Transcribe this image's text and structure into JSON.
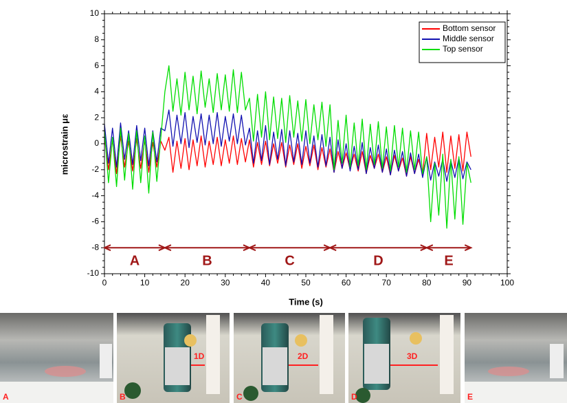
{
  "chart_data": {
    "type": "line",
    "xlabel": "Time (s)",
    "ylabel": "microstrain με",
    "xlim": [
      0,
      100
    ],
    "xticks": [
      0,
      10,
      20,
      30,
      40,
      50,
      60,
      70,
      80,
      90,
      100
    ],
    "ylim": [
      -10,
      10
    ],
    "yticks": [
      -10,
      -8,
      -6,
      -4,
      -2,
      0,
      2,
      4,
      6,
      8,
      10
    ],
    "legend": "upper right",
    "x": [
      0,
      1,
      2,
      3,
      4,
      5,
      6,
      7,
      8,
      9,
      10,
      11,
      12,
      13,
      14,
      15,
      16,
      17,
      18,
      19,
      20,
      21,
      22,
      23,
      24,
      25,
      26,
      27,
      28,
      29,
      30,
      31,
      32,
      33,
      34,
      35,
      36,
      37,
      38,
      39,
      40,
      41,
      42,
      43,
      44,
      45,
      46,
      47,
      48,
      49,
      50,
      51,
      52,
      53,
      54,
      55,
      56,
      57,
      58,
      59,
      60,
      61,
      62,
      63,
      64,
      65,
      66,
      67,
      68,
      69,
      70,
      71,
      72,
      73,
      74,
      75,
      76,
      77,
      78,
      79,
      80,
      81,
      82,
      83,
      84,
      85,
      86,
      87,
      88,
      89,
      90,
      91
    ],
    "series": [
      {
        "name": "Bottom sensor",
        "color": "#ff0000",
        "values": [
          0.5,
          -2.0,
          0.3,
          -2.3,
          0.6,
          -1.8,
          0.2,
          -2.1,
          0.4,
          -1.9,
          0.3,
          -2.2,
          0.1,
          -1.8,
          0.2,
          -0.5,
          0.5,
          -2.2,
          0.2,
          -1.9,
          0.4,
          -2.0,
          0.3,
          -1.7,
          0.6,
          -1.8,
          0.2,
          -1.6,
          0.5,
          -1.7,
          0.3,
          -1.5,
          0.6,
          -1.6,
          0.4,
          -1.4,
          0.3,
          -1.8,
          0.1,
          -1.6,
          0.2,
          -1.7,
          0.0,
          -1.5,
          0.1,
          -1.8,
          -0.1,
          -1.6,
          0.0,
          -1.9,
          -0.2,
          -1.7,
          -0.1,
          -2.0,
          -0.3,
          -1.8,
          -0.4,
          -2.2,
          -0.6,
          -1.9,
          -0.7,
          -2.0,
          -0.8,
          -2.1,
          -0.6,
          -2.3,
          -0.9,
          -1.9,
          -0.8,
          -2.2,
          -1.0,
          -2.4,
          -0.9,
          -2.1,
          -1.1,
          -2.5,
          -1.0,
          -2.3,
          -1.2,
          -2.4,
          0.8,
          -2.0,
          0.5,
          -1.8,
          0.9,
          -2.2,
          0.6,
          -1.9,
          0.7,
          -2.1,
          0.9,
          -1.0
        ]
      },
      {
        "name": "Middle sensor",
        "color": "#1010b0",
        "values": [
          1.5,
          -1.5,
          1.2,
          -1.8,
          1.6,
          -1.2,
          1.0,
          -1.6,
          1.4,
          -1.3,
          1.2,
          -1.7,
          1.0,
          -1.4,
          1.2,
          1.0,
          2.6,
          -0.2,
          2.2,
          0.0,
          2.4,
          -0.3,
          2.1,
          0.1,
          2.3,
          -0.1,
          2.2,
          0.0,
          2.4,
          -0.2,
          2.1,
          0.2,
          2.3,
          0.0,
          2.2,
          -0.1,
          1.2,
          -1.5,
          1.0,
          -1.3,
          1.4,
          -1.6,
          0.9,
          -1.2,
          1.1,
          -1.7,
          1.0,
          -1.4,
          0.8,
          -1.6,
          1.0,
          -1.5,
          0.6,
          -1.8,
          0.7,
          -1.7,
          0.5,
          -2.2,
          0.3,
          -1.9,
          0.0,
          -2.1,
          -0.2,
          -2.0,
          0.1,
          -2.3,
          -0.3,
          -1.9,
          -0.1,
          -2.2,
          -0.4,
          -2.4,
          -0.5,
          -2.1,
          -0.6,
          -2.5,
          -0.7,
          -2.3,
          -0.8,
          -2.6,
          -1.0,
          -2.8,
          -1.4,
          -2.5,
          -1.2,
          -2.9,
          -1.3,
          -2.6,
          -1.1,
          -2.7,
          -1.4,
          -2.0
        ]
      },
      {
        "name": "Top sensor",
        "color": "#00dd00",
        "values": [
          1.0,
          -3.0,
          0.5,
          -3.3,
          1.2,
          -2.8,
          0.8,
          -3.5,
          1.0,
          -3.0,
          0.6,
          -3.8,
          0.9,
          -2.9,
          0.5,
          4.0,
          6.0,
          2.5,
          5.0,
          2.2,
          5.5,
          2.6,
          5.2,
          2.3,
          5.6,
          2.8,
          5.0,
          2.4,
          5.4,
          2.6,
          5.3,
          2.5,
          5.7,
          2.4,
          5.5,
          2.6,
          3.5,
          0.2,
          3.8,
          0.5,
          4.0,
          0.3,
          3.6,
          0.4,
          3.5,
          0.1,
          3.7,
          0.5,
          3.3,
          0.2,
          3.4,
          0.0,
          3.0,
          0.3,
          3.2,
          -0.2,
          3.0,
          -2.0,
          1.8,
          -1.5,
          2.2,
          -1.8,
          1.6,
          -1.7,
          1.9,
          -2.0,
          1.5,
          -1.6,
          1.7,
          -1.9,
          1.3,
          -2.1,
          1.4,
          -1.8,
          1.2,
          -2.2,
          1.0,
          -2.0,
          0.9,
          -2.3,
          -1.0,
          -6.0,
          -1.5,
          -5.5,
          -0.8,
          -6.5,
          -1.2,
          -5.8,
          -1.0,
          -6.2,
          -1.5,
          -3.0
        ]
      }
    ],
    "segments": [
      {
        "label": "A",
        "start": 0,
        "end": 15
      },
      {
        "label": "B",
        "start": 15,
        "end": 36
      },
      {
        "label": "C",
        "start": 36,
        "end": 56
      },
      {
        "label": "D",
        "start": 56,
        "end": 80
      },
      {
        "label": "E",
        "start": 80,
        "end": 91
      }
    ],
    "segment_y": -8
  },
  "photos": [
    {
      "label": "A"
    },
    {
      "label": "B",
      "annotation": "1D"
    },
    {
      "label": "C",
      "annotation": "2D"
    },
    {
      "label": "D",
      "annotation": "3D"
    },
    {
      "label": "E"
    }
  ]
}
